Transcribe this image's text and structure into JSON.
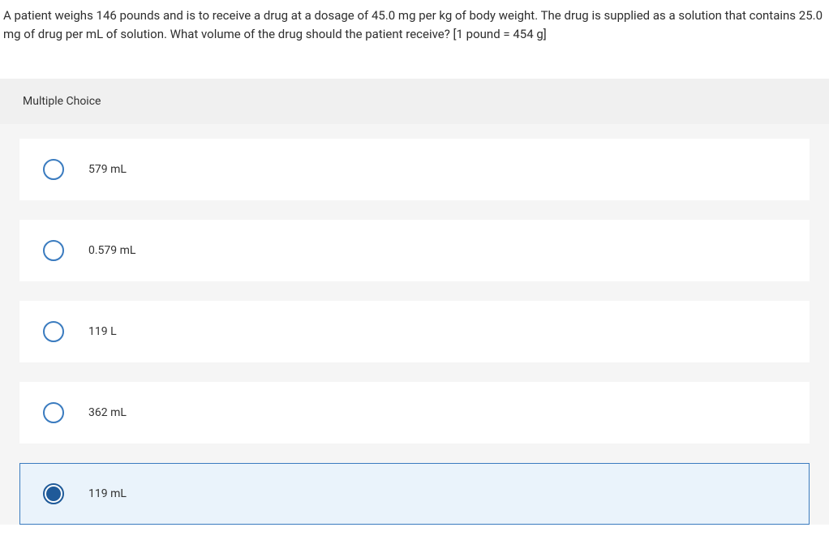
{
  "question": {
    "text": "A patient weighs 146 pounds and is to receive a drug at a dosage of 45.0 mg per kg of body weight. The drug is supplied as a solution that contains 25.0 mg of drug per mL of solution. What volume of the drug should the patient receive? [1 pound = 454 g]"
  },
  "mc": {
    "header": "Multiple Choice",
    "options": [
      {
        "label": "579 mL",
        "selected": false
      },
      {
        "label": "0.579 mL",
        "selected": false
      },
      {
        "label": "119 L",
        "selected": false
      },
      {
        "label": "362 mL",
        "selected": false
      },
      {
        "label": "119 mL",
        "selected": true
      }
    ]
  },
  "colors": {
    "option_bg": "#ffffff",
    "selected_bg": "#eaf3fb",
    "selected_border": "#3a7bbf",
    "radio_border": "#3a7bbf",
    "radio_fill": "#1f5a99",
    "container_bg": "#f5f5f5",
    "header_bg": "#f0f0f0",
    "text_color": "#333333"
  }
}
